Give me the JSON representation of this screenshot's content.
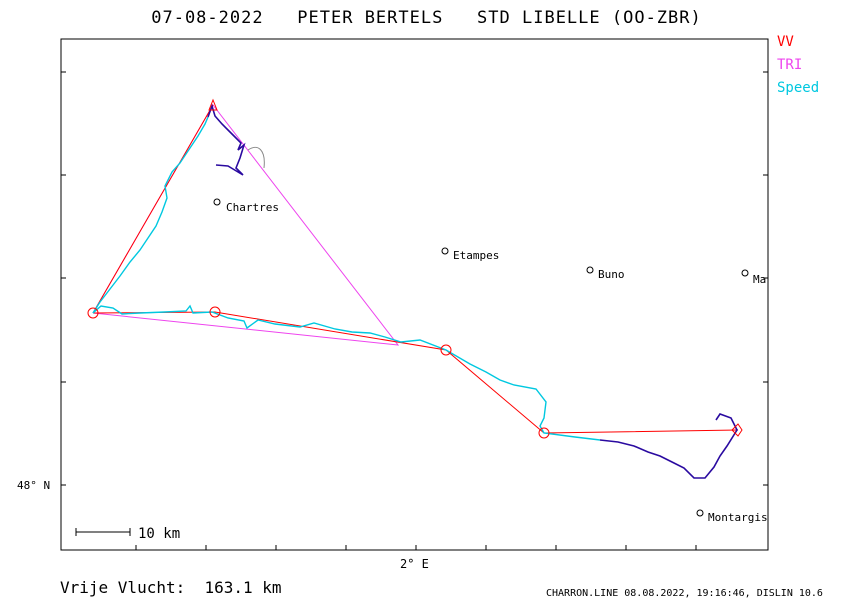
{
  "header": {
    "title": "07-08-2022   PETER BERTELS   STD LIBELLE (OO-ZBR)"
  },
  "legend": [
    {
      "label": "VV",
      "color": "#ff0000"
    },
    {
      "label": "TRI",
      "color": "#ee44ee"
    },
    {
      "label": "Speed",
      "color": "#00c8e0"
    }
  ],
  "axes": {
    "x_tick_label": "2° E",
    "y_tick_label": "48° N"
  },
  "towns": [
    {
      "name": "Chartres"
    },
    {
      "name": "Etampes"
    },
    {
      "name": "Buno"
    },
    {
      "name": "Ma"
    },
    {
      "name": "Montargis"
    }
  ],
  "scale_bar": {
    "label": "10 km"
  },
  "footer": {
    "distance": "Vrije Vlucht:  163.1 km",
    "credit": "CHARRON.LINE 08.08.2022, 19:16:46, DISLIN 10.6"
  },
  "colors": {
    "track_slow": "#2a0aa0",
    "track_fast": "#00c8e0",
    "vv": "#ff0000",
    "tri": "#ee44ee"
  }
}
